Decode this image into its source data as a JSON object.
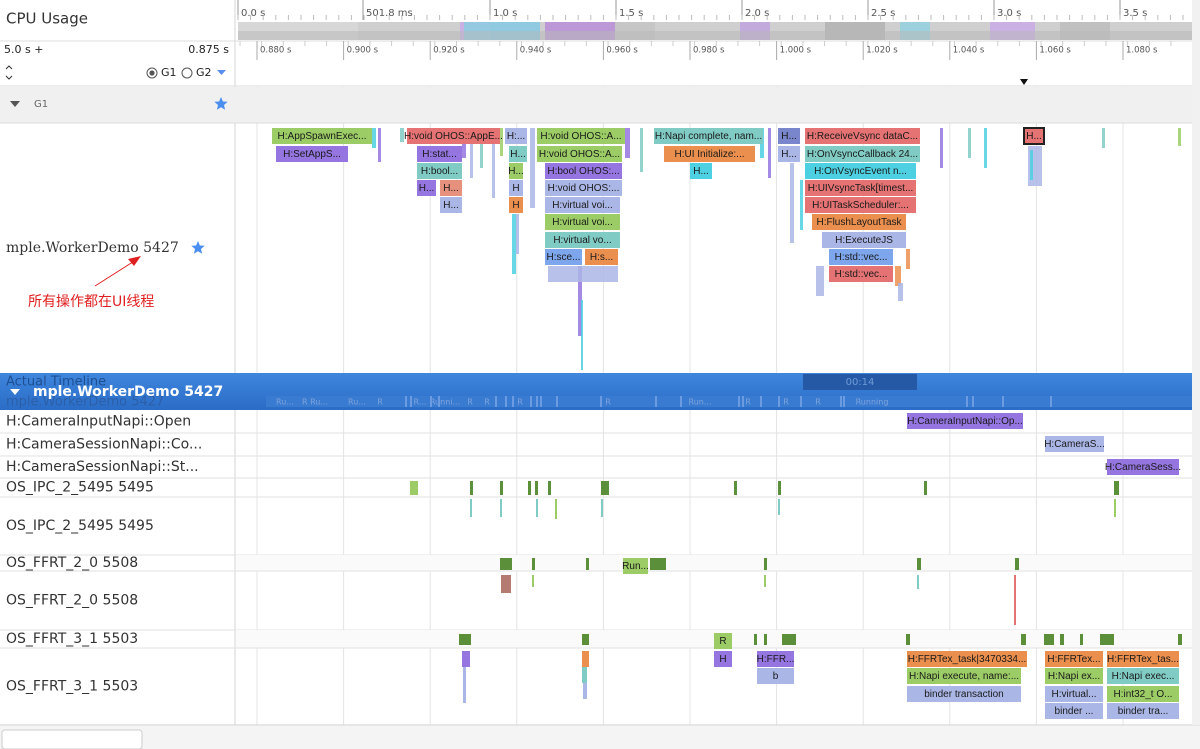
{
  "header": {
    "title": "CPU Usage"
  },
  "overview_ruler": {
    "ticks": [
      "0.0 s",
      "501.8 ms",
      "1.0 s",
      "1.5 s",
      "2.0 s",
      "2.5 s",
      "3.0 s",
      "3.5 s"
    ]
  },
  "controls": {
    "span": "5.0 s +",
    "offset": "0.875 s",
    "groups": [
      "G1",
      "G2"
    ]
  },
  "detail_ruler": {
    "ticks": [
      "0.880 s",
      "0.900 s",
      "0.920 s",
      "0.940 s",
      "0.960 s",
      "0.980 s",
      "1.000 s",
      "1.020 s",
      "1.040 s",
      "1.060 s",
      "1.080 s"
    ]
  },
  "group_row": {
    "label": "G1"
  },
  "main_thread": {
    "label": "mple.WorkerDemo 5427",
    "annotation": "所有操作都在UI线程",
    "slices": [
      "H:AppSpawnExec...",
      "H:SetAppS...",
      "H:void OHOS::AppE...",
      "H:stat...",
      "H:bool...",
      "H...",
      "H...",
      "H...",
      "H:...",
      "H...",
      "H...",
      "H",
      "H",
      "H:void OHOS::A...",
      "H:void OHOS::A...",
      "H:bool OHOS:...",
      "H:void OHOS:...",
      "H:virtual voi...",
      "H:virtual voi...",
      "H:virtual vo...",
      "H:sce...",
      "H:s...",
      "H:Napi complete, nam...",
      "H:UI Initialize:...",
      "H...",
      "H...",
      "H...",
      "H:ReceiveVsync dataC...",
      "H:OnVsyncCallback 24...",
      "H:OnVsyncEvent n...",
      "H:UIVsyncTask[timest...",
      "H:UITaskScheduler:...",
      "H:FlushLayoutTask",
      "H:ExecuteJS",
      "H:std::vec...",
      "H:std::vec...",
      "H..."
    ]
  },
  "pinned_header": {
    "label": "mple.WorkerDemo 5427",
    "hidden_label": "Actual Timeline",
    "hidden_label_2": "mple.WorkerDemo 5427",
    "time_badge": "00:14",
    "states": [
      "Ru...",
      "R Ru...",
      "Ru...",
      "R",
      "R...",
      "Runni...",
      "R",
      "R",
      "R",
      "R",
      "Run...",
      "R",
      "R",
      "R",
      "Running"
    ]
  },
  "rows": [
    {
      "label": "H:CameraInputNapi::Open",
      "slices": [
        "H:CameraInputNapi::Op..."
      ]
    },
    {
      "label": "H:CameraSessionNapi::Co...",
      "slices": [
        "H:CameraS..."
      ]
    },
    {
      "label": "H:CameraSessionNapi::St...",
      "slices": [
        "H:CameraSess..."
      ]
    },
    {
      "label": "OS_IPC_2_5495 5495",
      "slices": []
    },
    {
      "label": "OS_IPC_2_5495 5495",
      "slices": []
    },
    {
      "label": "OS_FFRT_2_0 5508",
      "slices": [
        "Run..."
      ]
    },
    {
      "label": "OS_FFRT_2_0 5508",
      "slices": []
    },
    {
      "label": "OS_FFRT_3_1 5503",
      "slices": [
        "R"
      ]
    },
    {
      "label": "OS_FFRT_3_1 5503",
      "slices": [
        "H",
        "H:FFR...",
        "b",
        "H:FFRTex_task|3470334...",
        "H:Napi execute, name:...",
        "binder transaction",
        "H:FFRTex...",
        "H:Napi ex...",
        "H:virtual...",
        "binder ...",
        "H:FFRTex_tas...",
        "H:Napi exec...",
        "H:int32_t O...",
        "binder tra..."
      ]
    }
  ]
}
